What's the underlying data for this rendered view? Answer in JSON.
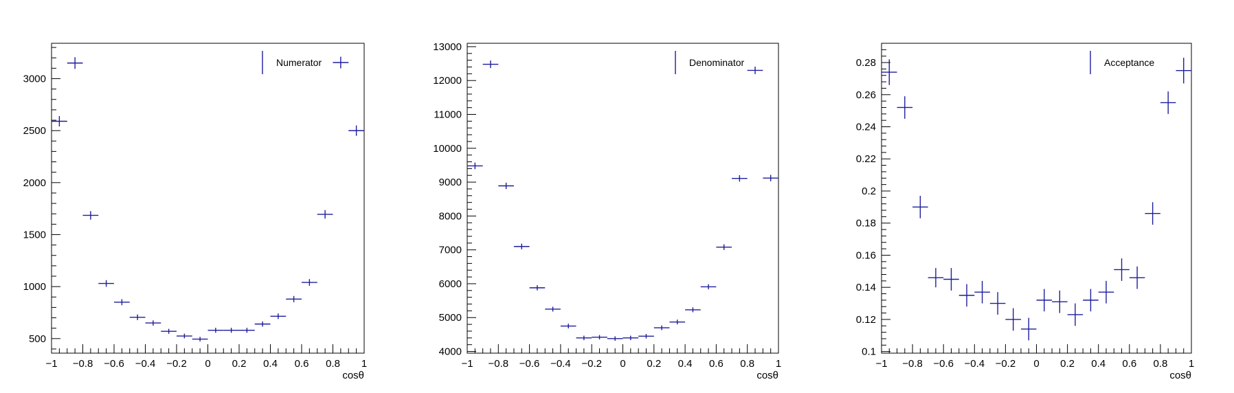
{
  "colors": {
    "marker": "#1c1c9c",
    "axis": "#000000",
    "background": "#ffffff"
  },
  "chart_data": [
    {
      "type": "scatter",
      "series": [
        {
          "name": "Numerator",
          "x": [
            -0.95,
            -0.85,
            -0.75,
            -0.65,
            -0.55,
            -0.45,
            -0.35,
            -0.25,
            -0.15,
            -0.05,
            0.05,
            0.15,
            0.25,
            0.35,
            0.45,
            0.55,
            0.65,
            0.75,
            0.85,
            0.95
          ],
          "y": [
            2590,
            3150,
            1685,
            1030,
            850,
            705,
            650,
            570,
            525,
            495,
            580,
            580,
            580,
            640,
            715,
            880,
            1040,
            1695,
            3155,
            2500
          ],
          "yerr": [
            50,
            56,
            41,
            32,
            29,
            27,
            25,
            24,
            23,
            22,
            24,
            24,
            24,
            25,
            27,
            30,
            32,
            41,
            56,
            50
          ]
        }
      ],
      "xlabel": "cosθ",
      "xlim": [
        -1,
        1
      ],
      "ylim": [
        360,
        3340
      ],
      "xticks": [
        "−1",
        "−0.8",
        "−0.6",
        "−0.4",
        "−0.2",
        "0",
        "0.2",
        "0.4",
        "0.6",
        "0.8",
        "1"
      ],
      "yticks": [
        "500",
        "1000",
        "1500",
        "2000",
        "2500",
        "3000"
      ],
      "legend": "top-right",
      "grid": false
    },
    {
      "type": "scatter",
      "series": [
        {
          "name": "Denominator",
          "x": [
            -0.95,
            -0.85,
            -0.75,
            -0.65,
            -0.55,
            -0.45,
            -0.35,
            -0.25,
            -0.15,
            -0.05,
            0.05,
            0.15,
            0.25,
            0.35,
            0.45,
            0.55,
            0.65,
            0.75,
            0.85,
            0.95
          ],
          "y": [
            9480,
            12480,
            8890,
            7100,
            5880,
            5250,
            4750,
            4400,
            4420,
            4380,
            4400,
            4450,
            4700,
            4870,
            5230,
            5910,
            7080,
            9110,
            12300,
            9120
          ],
          "yerr": [
            97,
            112,
            94,
            84,
            77,
            72,
            69,
            66,
            66,
            66,
            66,
            67,
            69,
            70,
            72,
            77,
            84,
            95,
            111,
            95
          ]
        }
      ],
      "xlabel": "cosθ",
      "xlim": [
        -1,
        1
      ],
      "ylim": [
        3950,
        13100
      ],
      "xticks": [
        "−1",
        "−0.8",
        "−0.6",
        "−0.4",
        "−0.2",
        "0",
        "0.2",
        "0.4",
        "0.6",
        "0.8",
        "1"
      ],
      "yticks": [
        "4000",
        "5000",
        "6000",
        "7000",
        "8000",
        "9000",
        "10000",
        "11000",
        "12000",
        "13000"
      ],
      "legend": "top-right",
      "grid": false
    },
    {
      "type": "scatter",
      "series": [
        {
          "name": "Acceptance",
          "x": [
            -0.95,
            -0.85,
            -0.75,
            -0.65,
            -0.55,
            -0.45,
            -0.35,
            -0.25,
            -0.15,
            -0.05,
            0.05,
            0.15,
            0.25,
            0.35,
            0.45,
            0.55,
            0.65,
            0.75,
            0.85,
            0.95
          ],
          "y": [
            0.274,
            0.252,
            0.19,
            0.146,
            0.145,
            0.135,
            0.137,
            0.13,
            0.12,
            0.114,
            0.132,
            0.131,
            0.123,
            0.132,
            0.137,
            0.151,
            0.146,
            0.186,
            0.255,
            0.275
          ],
          "yerr": [
            0.008,
            0.007,
            0.007,
            0.006,
            0.007,
            0.007,
            0.007,
            0.007,
            0.007,
            0.007,
            0.007,
            0.007,
            0.007,
            0.007,
            0.007,
            0.007,
            0.007,
            0.007,
            0.007,
            0.008
          ]
        }
      ],
      "xlabel": "cosθ",
      "xlim": [
        -1,
        1
      ],
      "ylim": [
        0.099,
        0.292
      ],
      "xticks": [
        "−1",
        "−0.8",
        "−0.6",
        "−0.4",
        "−0.2",
        "0",
        "0.2",
        "0.4",
        "0.6",
        "0.8",
        "1"
      ],
      "yticks": [
        "0.1",
        "0.12",
        "0.14",
        "0.16",
        "0.18",
        "0.2",
        "0.22",
        "0.24",
        "0.26",
        "0.28"
      ],
      "legend": "top-right",
      "grid": false
    }
  ]
}
